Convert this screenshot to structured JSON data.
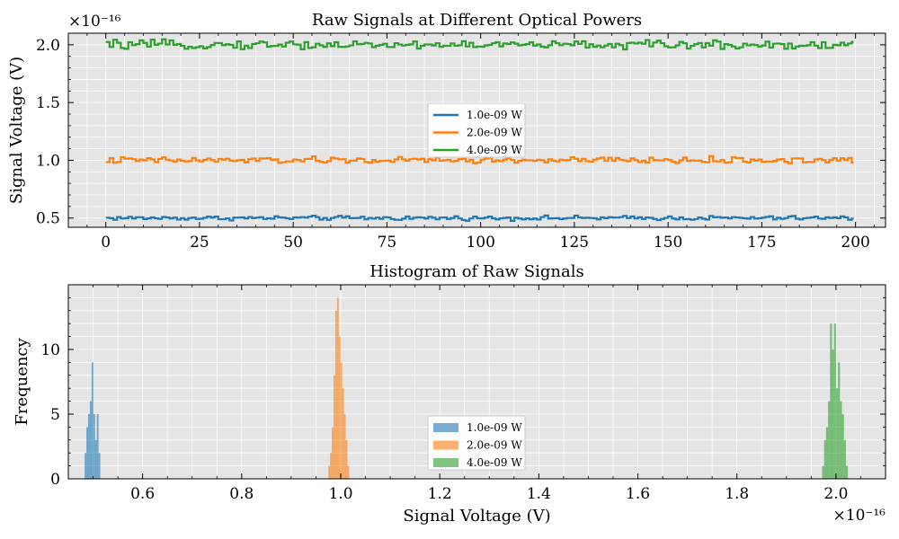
{
  "colors": {
    "blue": "#1f77b4",
    "orange": "#ff7f0e",
    "green": "#2ca02c",
    "axes_bg": "#e5e5e5",
    "grid": "#ffffff"
  },
  "chart_data": [
    {
      "type": "line",
      "title": "Raw Signals at Different Optical Powers",
      "xlabel": "",
      "ylabel": "Signal Voltage (V)",
      "xlim": [
        -10,
        208
      ],
      "ylim": [
        0.42,
        2.1
      ],
      "offset_label": "×10⁻¹⁶",
      "x_ticks": [
        0,
        25,
        50,
        75,
        100,
        125,
        150,
        175,
        200
      ],
      "x_tick_labels": [
        "0",
        "25",
        "50",
        "75",
        "100",
        "125",
        "150",
        "175",
        "200"
      ],
      "y_ticks": [
        0.5,
        1.0,
        1.5,
        2.0
      ],
      "y_tick_labels": [
        "0.5",
        "1.0",
        "1.5",
        "2.0"
      ],
      "grid": true,
      "legend": "center",
      "draw_style": "steps",
      "x_range": [
        0,
        199
      ],
      "series": [
        {
          "name": "1.0e-09 W",
          "mean": 0.5,
          "spread": 0.03,
          "color": "#1f77b4"
        },
        {
          "name": "2.0e-09 W",
          "mean": 1.0,
          "spread": 0.045,
          "color": "#ff7f0e"
        },
        {
          "name": "4.0e-09 W",
          "mean": 2.0,
          "spread": 0.06,
          "color": "#2ca02c"
        }
      ]
    },
    {
      "type": "histogram",
      "title": "Histogram of Raw Signals",
      "xlabel": "Signal Voltage (V)",
      "ylabel": "Frequency",
      "xlim": [
        0.45,
        2.1
      ],
      "ylim": [
        0,
        15
      ],
      "offset_label": "×10⁻¹⁶",
      "x_ticks": [
        0.6,
        0.8,
        1.0,
        1.2,
        1.4,
        1.6,
        1.8,
        2.0
      ],
      "x_tick_labels": [
        "0.6",
        "0.8",
        "1.0",
        "1.2",
        "1.4",
        "1.6",
        "1.8",
        "2.0"
      ],
      "y_ticks": [
        0,
        5,
        10
      ],
      "y_tick_labels": [
        "0",
        "5",
        "10"
      ],
      "grid": true,
      "legend": "lower center",
      "series": [
        {
          "name": "1.0e-09 W",
          "color": "#1f77b4",
          "bins": [
            [
              0.483,
              0.4865,
              2
            ],
            [
              0.4865,
              0.49,
              4
            ],
            [
              0.49,
              0.4935,
              5
            ],
            [
              0.4935,
              0.497,
              6
            ],
            [
              0.497,
              0.5005,
              9
            ],
            [
              0.5005,
              0.504,
              5
            ],
            [
              0.504,
              0.5075,
              3
            ],
            [
              0.5075,
              0.511,
              5
            ],
            [
              0.511,
              0.5145,
              2
            ]
          ]
        },
        {
          "name": "2.0e-09 W",
          "color": "#ff7f0e",
          "bins": [
            [
              0.975,
              0.9785,
              1
            ],
            [
              0.9785,
              0.982,
              2
            ],
            [
              0.982,
              0.9855,
              4
            ],
            [
              0.9855,
              0.989,
              8
            ],
            [
              0.989,
              0.9925,
              13
            ],
            [
              0.9925,
              0.996,
              14
            ],
            [
              0.996,
              0.9995,
              11
            ],
            [
              0.9995,
              1.003,
              9
            ],
            [
              1.003,
              1.0065,
              7
            ],
            [
              1.0065,
              1.01,
              5
            ],
            [
              1.01,
              1.0135,
              3
            ],
            [
              1.0135,
              1.017,
              1
            ]
          ]
        },
        {
          "name": "4.0e-09 W",
          "color": "#2ca02c",
          "bins": [
            [
              1.972,
              1.976,
              1
            ],
            [
              1.976,
              1.98,
              3
            ],
            [
              1.98,
              1.984,
              4
            ],
            [
              1.984,
              1.988,
              6
            ],
            [
              1.988,
              1.992,
              12
            ],
            [
              1.992,
              1.996,
              10
            ],
            [
              1.996,
              2.0,
              12
            ],
            [
              2.0,
              2.004,
              7
            ],
            [
              2.004,
              2.008,
              9
            ],
            [
              2.008,
              2.012,
              6
            ],
            [
              2.012,
              2.016,
              5
            ],
            [
              2.016,
              2.02,
              3
            ],
            [
              2.02,
              2.024,
              1
            ]
          ]
        }
      ]
    }
  ]
}
